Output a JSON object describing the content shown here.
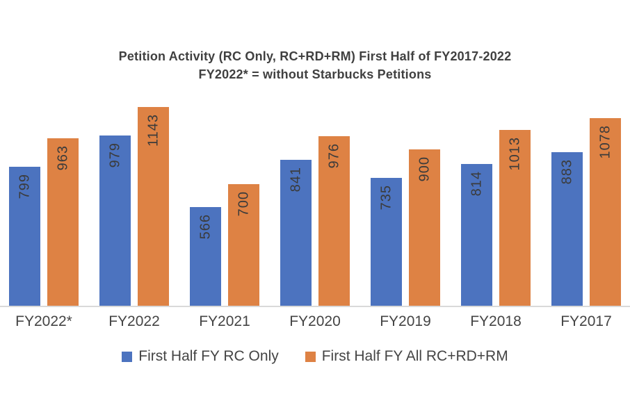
{
  "title": {
    "line1": "Petition Activity (RC Only, RC+RD+RM) First Half of FY2017-2022",
    "line2": "FY2022* = without Starbucks Petitions"
  },
  "chart_data": {
    "type": "bar",
    "categories": [
      "FY2022*",
      "FY2022",
      "FY2021",
      "FY2020",
      "FY2019",
      "FY2018",
      "FY2017"
    ],
    "series": [
      {
        "name": "First Half FY RC Only",
        "color": "#4C73BF",
        "values": [
          799,
          979,
          566,
          841,
          735,
          814,
          883
        ]
      },
      {
        "name": "First Half FY All RC+RD+RM",
        "color": "#DE8244",
        "values": [
          963,
          1143,
          700,
          976,
          900,
          1013,
          1078
        ]
      }
    ],
    "ylim": [
      0,
      1200
    ],
    "grid": false,
    "y_axis_visible": false,
    "bar_labels": true,
    "bar_label_rotation": "vertical-bottom-to-top",
    "legend_position": "bottom"
  },
  "colors": {
    "background": "#FFFFFF",
    "title_text": "#404040",
    "bar_label_text": "#3B3B3B",
    "axis_label_text": "#444444",
    "axis_line": "#D9D9D9"
  }
}
